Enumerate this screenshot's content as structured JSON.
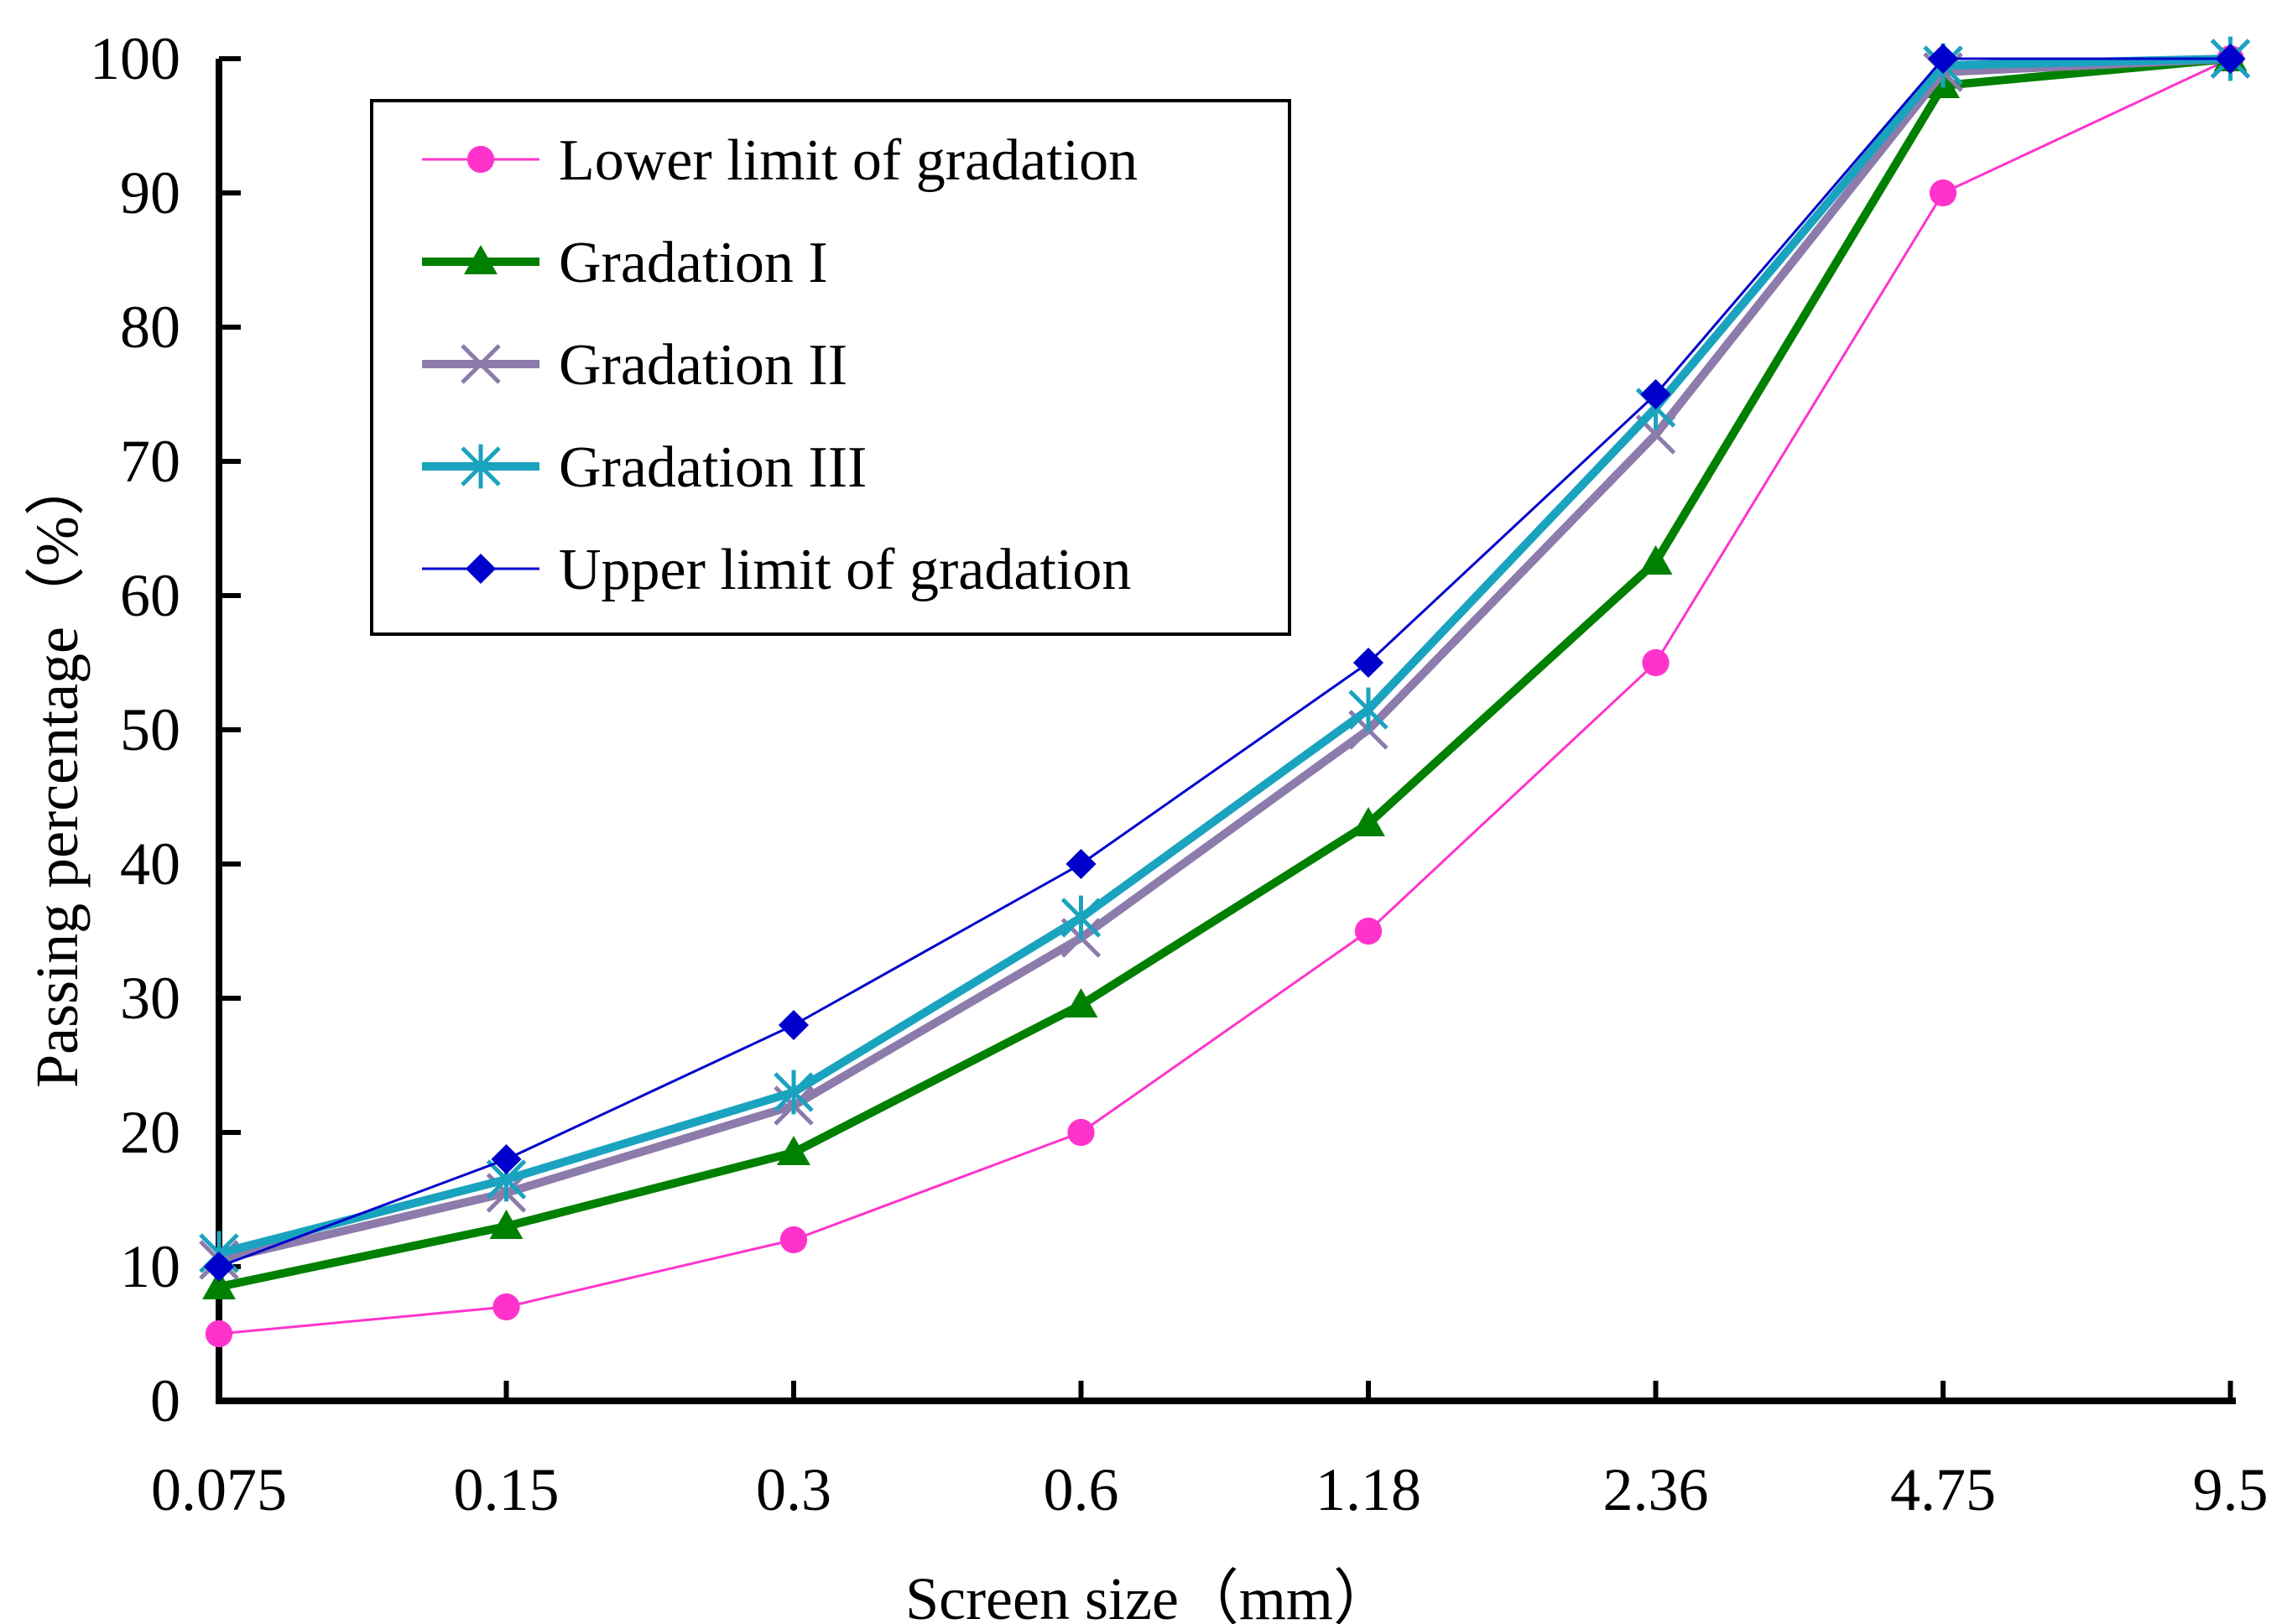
{
  "chart_data": {
    "type": "line",
    "title": "",
    "xlabel": "Screen size（mm）",
    "ylabel": "Passing percentage（%）",
    "categories": [
      "0.075",
      "0.15",
      "0.3",
      "0.6",
      "1.18",
      "2.36",
      "4.75",
      "9.5"
    ],
    "ylim": [
      0,
      100
    ],
    "yticks": [
      "0",
      "10",
      "20",
      "30",
      "40",
      "50",
      "60",
      "70",
      "80",
      "90",
      "100"
    ],
    "grid": false,
    "legend_position": "top-left",
    "series": [
      {
        "name": "Lower limit of gradation",
        "values": [
          5,
          7,
          12,
          20,
          35,
          55,
          90,
          100
        ],
        "color": "#ff33cc",
        "marker": "circle"
      },
      {
        "name": "Gradation I",
        "values": [
          8.5,
          13,
          18.5,
          29.5,
          43,
          62.5,
          98,
          100
        ],
        "color": "#008000",
        "marker": "triangle"
      },
      {
        "name": "Gradation II",
        "values": [
          10.5,
          15.5,
          22,
          34.5,
          50,
          72,
          99,
          100
        ],
        "color": "#8c7bab",
        "marker": "x"
      },
      {
        "name": "Gradation III",
        "values": [
          11,
          16.5,
          23,
          36,
          51.5,
          74,
          99.5,
          100
        ],
        "color": "#1aa3bf",
        "marker": "asterisk"
      },
      {
        "name": "Upper limit of gradation",
        "values": [
          10,
          18,
          28,
          40,
          55,
          75,
          100,
          100
        ],
        "color": "#0000cc",
        "marker": "diamond"
      }
    ]
  }
}
